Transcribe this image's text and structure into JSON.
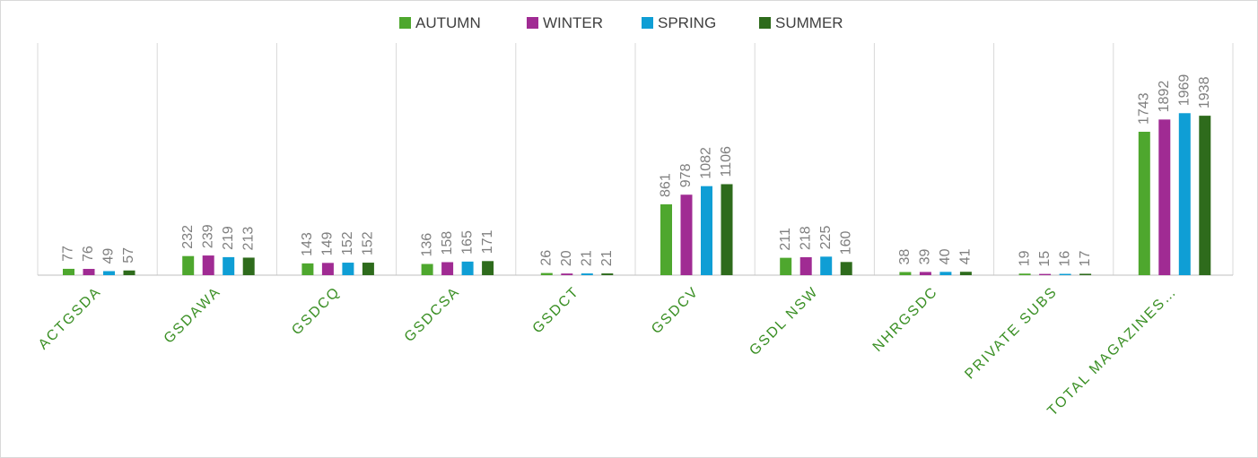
{
  "chart_data": {
    "type": "bar",
    "categories": [
      "ACTGSDA",
      "GSDAWA",
      "GSDCQ",
      "GSDCSA",
      "GSDCT",
      "GSDCV",
      "GSDL NSW",
      "NHRGSDC",
      "PRIVATE SUBS",
      "TOTAL MAGAZINES…"
    ],
    "series": [
      {
        "name": "AUTUMN",
        "color": "#4ea72e",
        "values": [
          77,
          232,
          143,
          136,
          26,
          861,
          211,
          38,
          19,
          1743
        ]
      },
      {
        "name": "WINTER",
        "color": "#a02b93",
        "values": [
          76,
          239,
          149,
          158,
          20,
          978,
          218,
          39,
          15,
          1892
        ]
      },
      {
        "name": "SPRING",
        "color": "#0f9ed5",
        "values": [
          49,
          219,
          152,
          165,
          21,
          1082,
          225,
          40,
          16,
          1969
        ]
      },
      {
        "name": "SUMMER",
        "color": "#2e6b1c",
        "values": [
          57,
          213,
          152,
          171,
          21,
          1106,
          160,
          41,
          17,
          1938
        ]
      }
    ],
    "ylim": [
      0,
      2800
    ],
    "legend": "top"
  }
}
